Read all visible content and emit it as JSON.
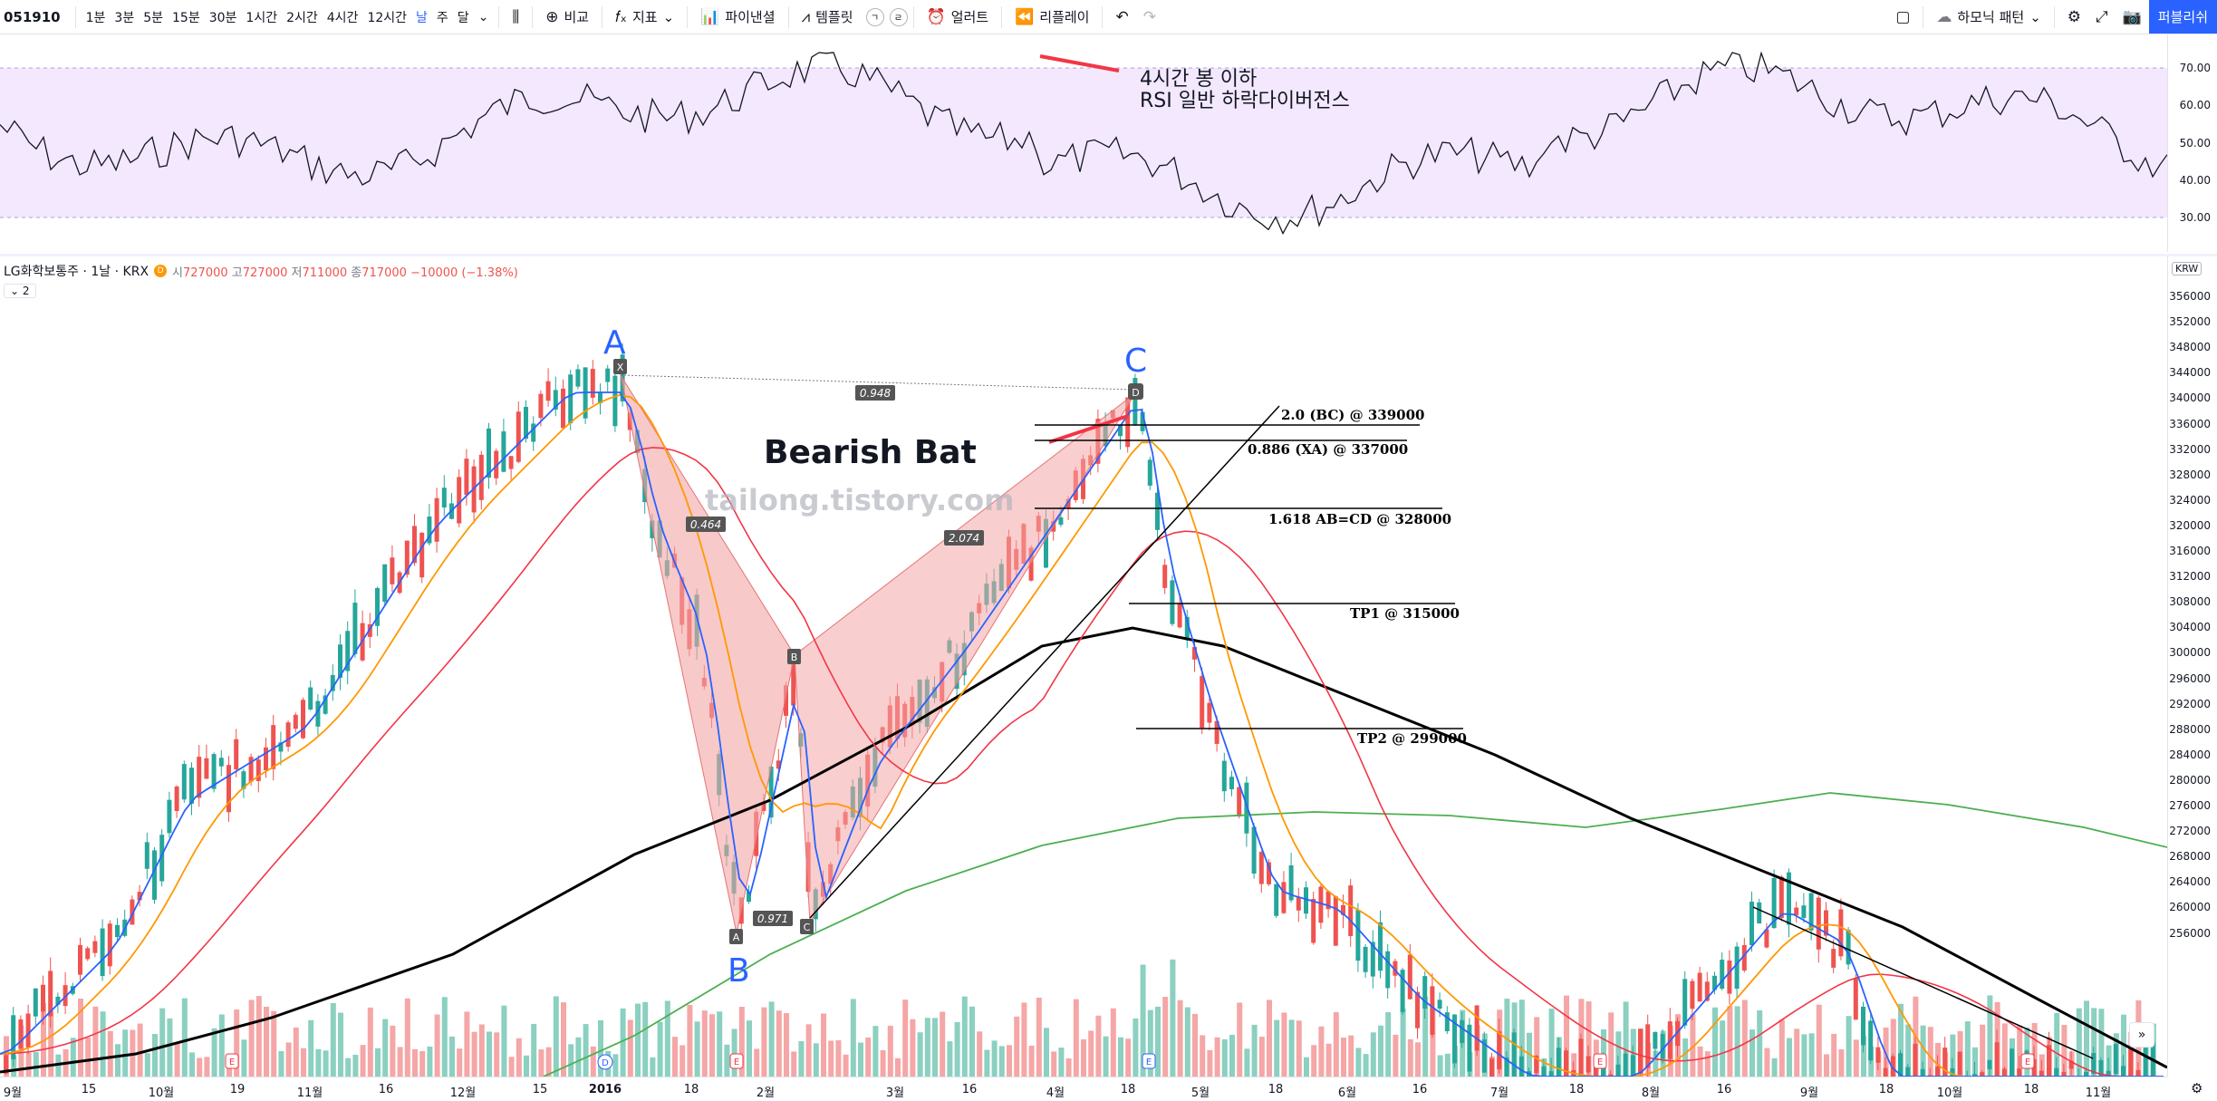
{
  "toolbar": {
    "symbol": "051910",
    "timeframes": [
      "1분",
      "3분",
      "5분",
      "15분",
      "30분",
      "1시간",
      "2시간",
      "4시간",
      "12시간",
      "날",
      "주",
      "달"
    ],
    "active_timeframe": "날",
    "compare_label": "비교",
    "indicators_label": "지표",
    "financials_label": "파이낸셜",
    "templates_label": "템플릿",
    "alert_label": "얼러트",
    "replay_label": "리플레이",
    "harmonic_label": "하모닉 패턴",
    "publish_label": "퍼블리쉬",
    "badge_1": "ㄱ",
    "badge_2": "ㄹ"
  },
  "rsi": {
    "axis_labels": [
      "70.00",
      "60.00",
      "50.00",
      "40.00",
      "30.00"
    ],
    "annotation_line1": "4시간 봉 이하",
    "annotation_line2": "RSI 일반 하락다이버전스"
  },
  "legend": {
    "title": "LG화학보통주 · 1날 · KRX",
    "badge": "D",
    "open_label": "시",
    "open": "727000",
    "high_label": "고",
    "high": "727000",
    "low_label": "저",
    "low": "711000",
    "close_label": "종",
    "close": "717000",
    "change": "−10000 (−1.38%)",
    "collapse": "2"
  },
  "price_axis": {
    "currency": "KRW",
    "labels": [
      "356000",
      "352000",
      "348000",
      "344000",
      "340000",
      "336000",
      "332000",
      "328000",
      "324000",
      "320000",
      "316000",
      "312000",
      "308000",
      "304000",
      "300000",
      "296000",
      "292000",
      "288000",
      "284000",
      "280000",
      "276000",
      "272000",
      "268000",
      "264000",
      "260000",
      "256000"
    ]
  },
  "time_axis": {
    "labels": [
      "9월",
      "15",
      "10월",
      "19",
      "11월",
      "16",
      "12월",
      "15",
      "2016",
      "18",
      "2월",
      "3월",
      "16",
      "4월",
      "18",
      "5월",
      "18",
      "6월",
      "16",
      "7월",
      "18",
      "8월",
      "16",
      "9월",
      "18",
      "10월",
      "18",
      "11월"
    ]
  },
  "pattern": {
    "title": "Bearish Bat",
    "watermark": "tailong.tistory.com",
    "point_A": "A",
    "point_B": "B",
    "point_C": "C",
    "tag_X": "X",
    "tag_A": "A",
    "tag_B": "B",
    "tag_C": "C",
    "tag_D": "D",
    "ratio_xd": "0.948",
    "ratio_xb": "0.464",
    "ratio_ac": "0.971",
    "ratio_bd": "2.074",
    "level_1": "2.0 (BC) @ 339000",
    "level_2": "0.886 (XA) @ 337000",
    "level_3": "1.618 AB=CD @ 328000",
    "tp1": "TP1 @ 315000",
    "tp2": "TP2 @ 299000"
  },
  "colors": {
    "up": "#26a69a",
    "down": "#ef5350",
    "ma_blue": "#2962ff",
    "ma_orange": "#ff9800",
    "ma_red": "#f23645",
    "ma_green": "#4caf50",
    "ma_black": "#000000",
    "rsi_band": "#f3e8fd",
    "accent": "#2962ff"
  },
  "events": [
    "D",
    "E",
    "E",
    "E",
    "E",
    "E"
  ]
}
